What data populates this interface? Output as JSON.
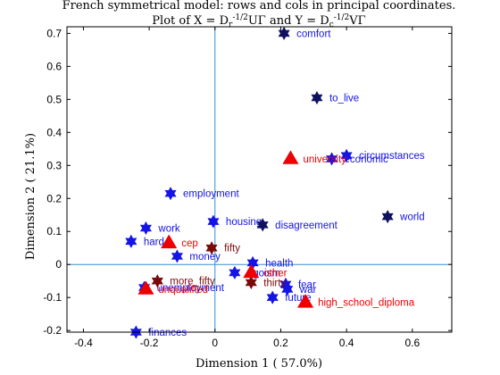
{
  "chart_data": {
    "type": "scatter",
    "title_line1": "French symmetrical model: rows and cols in principal coordinates.",
    "title_line2": "Plot of X = D_r^{-1/2}UΓ and Y = D_c^{-1/2}VΓ",
    "xlabel": "Dimension  1 ( 57.0%)",
    "ylabel": "Dimension  2 ( 21.1%)",
    "xlim": [
      -0.45,
      0.72
    ],
    "ylim": [
      -0.205,
      0.72
    ],
    "xticks": [
      "-0.4",
      "-0.2",
      "0",
      "0.2",
      "0.4",
      "0.6"
    ],
    "yticks": [
      "-0.2",
      "-0.1",
      "0",
      "0.1",
      "0.2",
      "0.3",
      "0.4",
      "0.5",
      "0.6",
      "0.7"
    ],
    "colors": {
      "row_navy": "#101060",
      "row_blue": "#1414e6",
      "col_red": "#ee0000",
      "col_darkred": "#7a0a0a",
      "label_blue": "#1414e6",
      "label_red": "#ee0000",
      "label_darkred": "#7a0a0a",
      "reference_lines": "#3a8fd0"
    },
    "series": [
      {
        "marker": "hexagram",
        "points": [
          {
            "label": "comfort",
            "x": 0.21,
            "y": 0.7,
            "color": "row_navy",
            "label_color": "label_blue"
          },
          {
            "label": "to_live",
            "x": 0.31,
            "y": 0.505,
            "color": "row_navy",
            "label_color": "label_blue"
          },
          {
            "label": "circumstances",
            "x": 0.4,
            "y": 0.33,
            "color": "row_blue",
            "label_color": "label_blue"
          },
          {
            "label": "economic",
            "x": 0.355,
            "y": 0.32,
            "color": "row_blue",
            "label_color": "label_blue"
          },
          {
            "label": "employment",
            "x": -0.135,
            "y": 0.215,
            "color": "row_blue",
            "label_color": "label_blue"
          },
          {
            "label": "world",
            "x": 0.525,
            "y": 0.145,
            "color": "row_navy",
            "label_color": "label_blue"
          },
          {
            "label": "housing",
            "x": -0.005,
            "y": 0.13,
            "color": "row_blue",
            "label_color": "label_blue"
          },
          {
            "label": "disagreement",
            "x": 0.145,
            "y": 0.12,
            "color": "row_navy",
            "label_color": "label_blue"
          },
          {
            "label": "work",
            "x": -0.21,
            "y": 0.11,
            "color": "row_blue",
            "label_color": "label_blue"
          },
          {
            "label": "hard",
            "x": -0.255,
            "y": 0.07,
            "color": "row_blue",
            "label_color": "label_blue"
          },
          {
            "label": "money",
            "x": -0.115,
            "y": 0.025,
            "color": "row_blue",
            "label_color": "label_blue"
          },
          {
            "label": "health",
            "x": 0.115,
            "y": 0.005,
            "color": "row_blue",
            "label_color": "label_blue"
          },
          {
            "label": "egoism",
            "x": 0.06,
            "y": -0.025,
            "color": "row_blue",
            "label_color": "label_blue"
          },
          {
            "label": "fear",
            "x": 0.215,
            "y": -0.06,
            "color": "row_blue",
            "label_color": "label_blue"
          },
          {
            "label": "war",
            "x": 0.22,
            "y": -0.075,
            "color": "row_blue",
            "label_color": "label_blue"
          },
          {
            "label": "future",
            "x": 0.175,
            "y": -0.1,
            "color": "row_blue",
            "label_color": "label_blue"
          },
          {
            "label": "unemployment",
            "x": -0.215,
            "y": -0.07,
            "color": "row_blue",
            "label_color": "label_blue"
          },
          {
            "label": "finances",
            "x": -0.24,
            "y": -0.205,
            "color": "row_blue",
            "label_color": "label_blue"
          },
          {
            "label": "fifty",
            "x": -0.01,
            "y": 0.05,
            "color": "col_darkred",
            "label_color": "label_darkred"
          },
          {
            "label": "more_fifty",
            "x": -0.175,
            "y": -0.05,
            "color": "col_darkred",
            "label_color": "label_darkred"
          },
          {
            "label": "thirty",
            "x": 0.11,
            "y": -0.055,
            "color": "col_darkred",
            "label_color": "label_darkred"
          }
        ]
      },
      {
        "marker": "triangle",
        "points": [
          {
            "label": "university",
            "x": 0.23,
            "y": 0.32,
            "color": "col_red",
            "label_color": "label_red"
          },
          {
            "label": "cep",
            "x": -0.14,
            "y": 0.065,
            "color": "col_red",
            "label_color": "label_red"
          },
          {
            "label": "other",
            "x": 0.11,
            "y": -0.025,
            "color": "col_red",
            "label_color": "label_red"
          },
          {
            "label": "unqualified",
            "x": -0.21,
            "y": -0.075,
            "color": "col_red",
            "label_color": "label_red"
          },
          {
            "label": "high_school_diploma",
            "x": 0.275,
            "y": -0.115,
            "color": "col_red",
            "label_color": "label_red"
          }
        ]
      }
    ]
  }
}
